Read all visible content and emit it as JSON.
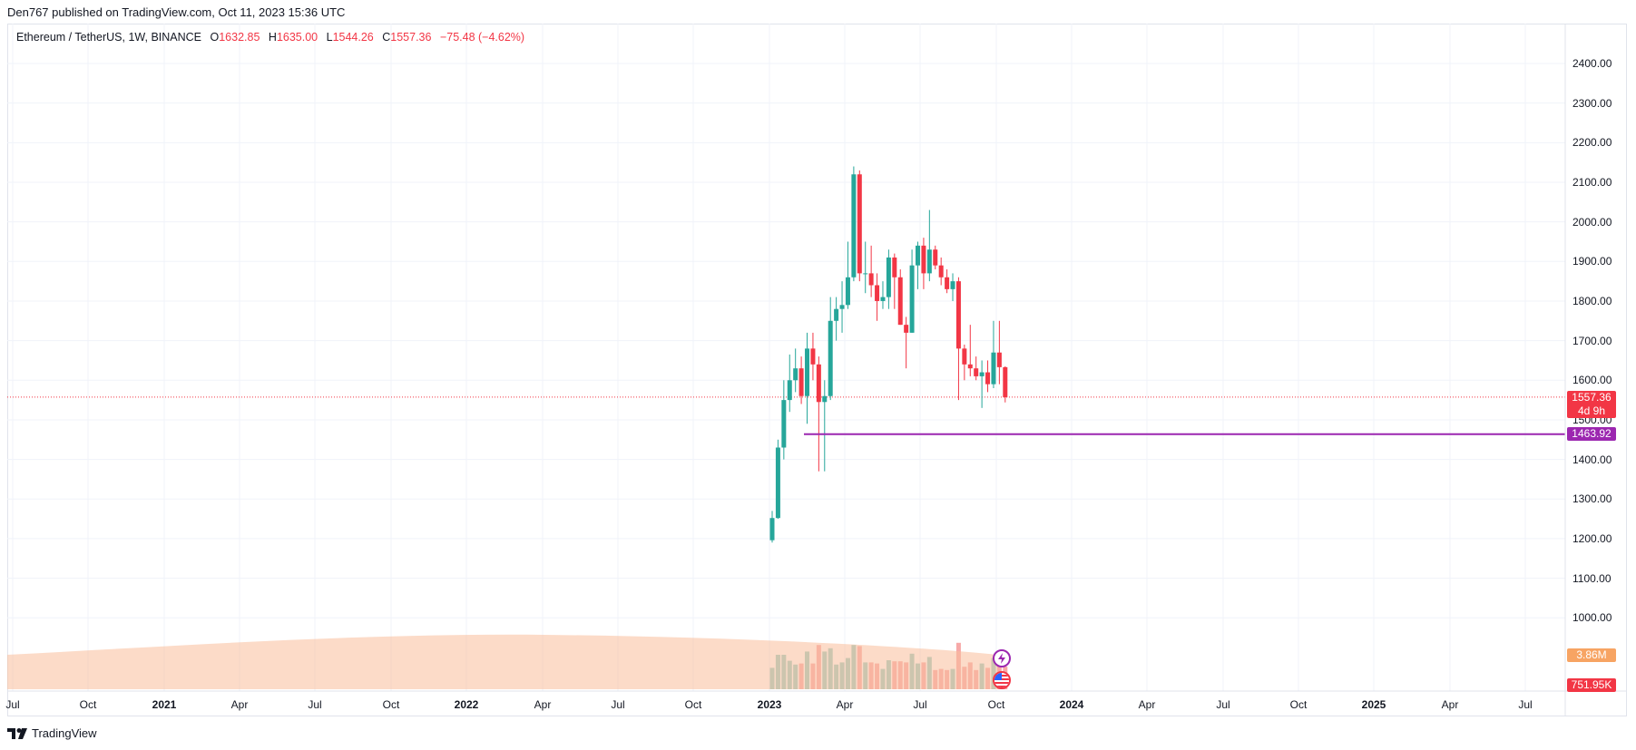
{
  "publisher_line": "Den767 published on TradingView.com, Oct 11, 2023 15:36 UTC",
  "legend": {
    "symbol": "Ethereum / TetherUS, 1W, BINANCE",
    "open_label": "O",
    "open": "1632.85",
    "high_label": "H",
    "high": "1635.00",
    "low_label": "L",
    "low": "1544.26",
    "close_label": "C",
    "close": "1557.36",
    "change": "−75.48 (−4.62%)"
  },
  "price_axis": {
    "ticks": [
      "2400.00",
      "2300.00",
      "2200.00",
      "2100.00",
      "2000.00",
      "1900.00",
      "1800.00",
      "1700.00",
      "1600.00",
      "1500.00",
      "1400.00",
      "1300.00",
      "1200.00",
      "1100.00",
      "1000.00"
    ],
    "last_price": "1557.36",
    "countdown": "4d 9h",
    "horizontal_line_price": "1463.92",
    "volume_ma": "3.86M",
    "volume": "751.95K"
  },
  "time_axis": {
    "ticks": [
      {
        "label": "Jul",
        "bold": false
      },
      {
        "label": "Oct",
        "bold": false
      },
      {
        "label": "2021",
        "bold": true
      },
      {
        "label": "Apr",
        "bold": false
      },
      {
        "label": "Jul",
        "bold": false
      },
      {
        "label": "Oct",
        "bold": false
      },
      {
        "label": "2022",
        "bold": true
      },
      {
        "label": "Apr",
        "bold": false
      },
      {
        "label": "Jul",
        "bold": false
      },
      {
        "label": "Oct",
        "bold": false
      },
      {
        "label": "2023",
        "bold": true
      },
      {
        "label": "Apr",
        "bold": false
      },
      {
        "label": "Jul",
        "bold": false
      },
      {
        "label": "Oct",
        "bold": false
      },
      {
        "label": "2024",
        "bold": true
      },
      {
        "label": "Apr",
        "bold": false
      },
      {
        "label": "Jul",
        "bold": false
      },
      {
        "label": "Oct",
        "bold": false
      },
      {
        "label": "2025",
        "bold": true
      },
      {
        "label": "Apr",
        "bold": false
      },
      {
        "label": "Jul",
        "bold": false
      }
    ]
  },
  "footer": {
    "brand": "TradingView"
  },
  "colors": {
    "up": "#26a69a",
    "down": "#f23645",
    "line": "#9c27b0",
    "vol_up": "#94cfc6",
    "vol_down": "#f7a9a8",
    "vol_ma": "#f9be9a"
  },
  "icons": [
    "lightning-event-icon",
    "us-flag-event-icon"
  ],
  "chart_data": {
    "type": "candlestick",
    "title": "Ethereum / TetherUS, 1W, BINANCE",
    "interval": "1W",
    "ylim": [
      950,
      2450
    ],
    "y_scale": "linear",
    "grid": true,
    "candles": [
      {
        "t": "2023-01-02",
        "o": 1196,
        "h": 1270,
        "l": 1190,
        "c": 1252
      },
      {
        "t": "2023-01-09",
        "o": 1252,
        "h": 1450,
        "l": 1250,
        "c": 1430
      },
      {
        "t": "2023-01-16",
        "o": 1430,
        "h": 1600,
        "l": 1400,
        "c": 1550
      },
      {
        "t": "2023-01-23",
        "o": 1550,
        "h": 1665,
        "l": 1520,
        "c": 1600
      },
      {
        "t": "2023-01-30",
        "o": 1600,
        "h": 1680,
        "l": 1570,
        "c": 1630
      },
      {
        "t": "2023-02-06",
        "o": 1630,
        "h": 1660,
        "l": 1540,
        "c": 1560
      },
      {
        "t": "2023-02-13",
        "o": 1560,
        "h": 1720,
        "l": 1490,
        "c": 1680
      },
      {
        "t": "2023-02-20",
        "o": 1680,
        "h": 1720,
        "l": 1600,
        "c": 1640
      },
      {
        "t": "2023-02-27",
        "o": 1640,
        "h": 1660,
        "l": 1370,
        "c": 1545
      },
      {
        "t": "2023-03-06",
        "o": 1545,
        "h": 1600,
        "l": 1370,
        "c": 1560
      },
      {
        "t": "2023-03-13",
        "o": 1560,
        "h": 1810,
        "l": 1550,
        "c": 1750
      },
      {
        "t": "2023-03-20",
        "o": 1750,
        "h": 1810,
        "l": 1700,
        "c": 1780
      },
      {
        "t": "2023-03-27",
        "o": 1780,
        "h": 1850,
        "l": 1720,
        "c": 1790
      },
      {
        "t": "2023-04-03",
        "o": 1790,
        "h": 1950,
        "l": 1780,
        "c": 1860
      },
      {
        "t": "2023-04-10",
        "o": 1860,
        "h": 2140,
        "l": 1850,
        "c": 2120
      },
      {
        "t": "2023-04-17",
        "o": 2120,
        "h": 2130,
        "l": 1850,
        "c": 1870
      },
      {
        "t": "2023-04-24",
        "o": 1870,
        "h": 1950,
        "l": 1820,
        "c": 1870
      },
      {
        "t": "2023-05-01",
        "o": 1870,
        "h": 1940,
        "l": 1810,
        "c": 1840
      },
      {
        "t": "2023-05-08",
        "o": 1840,
        "h": 1870,
        "l": 1750,
        "c": 1800
      },
      {
        "t": "2023-05-15",
        "o": 1800,
        "h": 1850,
        "l": 1780,
        "c": 1810
      },
      {
        "t": "2023-05-22",
        "o": 1810,
        "h": 1930,
        "l": 1780,
        "c": 1910
      },
      {
        "t": "2023-05-29",
        "o": 1910,
        "h": 1920,
        "l": 1780,
        "c": 1860
      },
      {
        "t": "2023-06-05",
        "o": 1860,
        "h": 1880,
        "l": 1740,
        "c": 1740
      },
      {
        "t": "2023-06-12",
        "o": 1740,
        "h": 1760,
        "l": 1630,
        "c": 1720
      },
      {
        "t": "2023-06-19",
        "o": 1720,
        "h": 1930,
        "l": 1720,
        "c": 1890
      },
      {
        "t": "2023-06-26",
        "o": 1890,
        "h": 1950,
        "l": 1830,
        "c": 1940
      },
      {
        "t": "2023-07-03",
        "o": 1940,
        "h": 1960,
        "l": 1830,
        "c": 1870
      },
      {
        "t": "2023-07-10",
        "o": 1870,
        "h": 2030,
        "l": 1850,
        "c": 1930
      },
      {
        "t": "2023-07-17",
        "o": 1930,
        "h": 1940,
        "l": 1880,
        "c": 1890
      },
      {
        "t": "2023-07-24",
        "o": 1890,
        "h": 1910,
        "l": 1840,
        "c": 1860
      },
      {
        "t": "2023-07-31",
        "o": 1860,
        "h": 1880,
        "l": 1820,
        "c": 1830
      },
      {
        "t": "2023-08-07",
        "o": 1830,
        "h": 1870,
        "l": 1800,
        "c": 1850
      },
      {
        "t": "2023-08-14",
        "o": 1850,
        "h": 1860,
        "l": 1550,
        "c": 1680
      },
      {
        "t": "2023-08-21",
        "o": 1680,
        "h": 1690,
        "l": 1600,
        "c": 1640
      },
      {
        "t": "2023-08-28",
        "o": 1640,
        "h": 1740,
        "l": 1610,
        "c": 1630
      },
      {
        "t": "2023-09-04",
        "o": 1630,
        "h": 1660,
        "l": 1600,
        "c": 1610
      },
      {
        "t": "2023-09-11",
        "o": 1610,
        "h": 1650,
        "l": 1530,
        "c": 1620
      },
      {
        "t": "2023-09-18",
        "o": 1620,
        "h": 1650,
        "l": 1570,
        "c": 1590
      },
      {
        "t": "2023-09-25",
        "o": 1590,
        "h": 1750,
        "l": 1580,
        "c": 1670
      },
      {
        "t": "2023-10-02",
        "o": 1670,
        "h": 1750,
        "l": 1590,
        "c": 1633
      },
      {
        "t": "2023-10-09",
        "o": 1633,
        "h": 1635,
        "l": 1544,
        "c": 1557
      }
    ],
    "horizontal_line": 1463.92
  }
}
